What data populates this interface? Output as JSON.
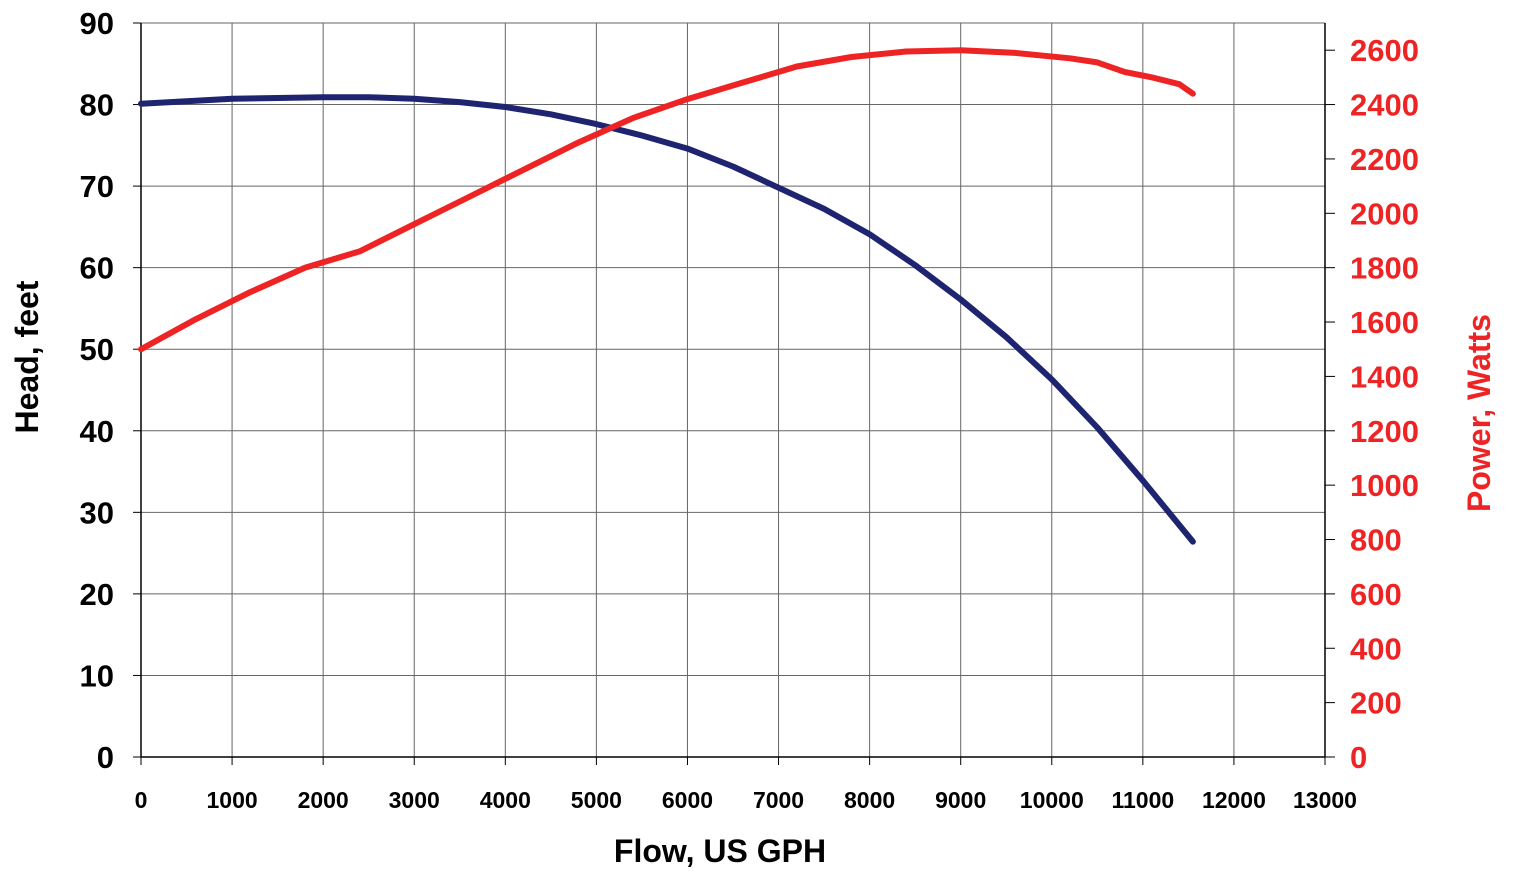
{
  "colors": {
    "head_series": "#1e2470",
    "power_series": "#ee2424",
    "grid": "#666666",
    "axis_text": "#000000"
  },
  "chart_data": {
    "type": "line",
    "title": "",
    "xlabel": "Flow, US GPH",
    "ylabel": "Head, feet",
    "y2label": "Power, Watts",
    "xlim": [
      0,
      13000
    ],
    "ylim": [
      0,
      90
    ],
    "y2lim": [
      0,
      2700
    ],
    "x_ticks": [
      0,
      1000,
      2000,
      3000,
      4000,
      5000,
      6000,
      7000,
      8000,
      9000,
      10000,
      11000,
      12000,
      13000
    ],
    "y_ticks": [
      0,
      10,
      20,
      30,
      40,
      50,
      60,
      70,
      80,
      90
    ],
    "y2_ticks": [
      0,
      200,
      400,
      600,
      800,
      1000,
      1200,
      1400,
      1600,
      1800,
      2000,
      2200,
      2400,
      2600
    ],
    "grid": true,
    "series": [
      {
        "axis": "left",
        "color": "#1e2470",
        "x": [
          0,
          500,
          1000,
          1500,
          2000,
          2500,
          3000,
          3500,
          4000,
          4500,
          5000,
          5500,
          6000,
          6500,
          7000,
          7500,
          8000,
          8500,
          9000,
          9500,
          10000,
          10500,
          11000,
          11550
        ],
        "y": [
          80.1,
          80.4,
          80.7,
          80.8,
          80.9,
          80.9,
          80.7,
          80.3,
          79.7,
          78.8,
          77.6,
          76.2,
          74.6,
          72.4,
          69.8,
          67.2,
          64.1,
          60.3,
          56.1,
          51.5,
          46.3,
          40.4,
          33.9,
          26.4
        ]
      },
      {
        "axis": "right",
        "color": "#ee2424",
        "x": [
          0,
          600,
          1200,
          1800,
          2400,
          3000,
          3600,
          4200,
          4800,
          5400,
          6000,
          6600,
          7200,
          7800,
          8400,
          9000,
          9600,
          10200,
          10500,
          10800,
          11100,
          11400,
          11550
        ],
        "y": [
          1500,
          1610,
          1710,
          1800,
          1860,
          1960,
          2060,
          2160,
          2260,
          2350,
          2420,
          2480,
          2540,
          2575,
          2595,
          2600,
          2590,
          2570,
          2555,
          2520,
          2500,
          2475,
          2440
        ]
      }
    ]
  }
}
